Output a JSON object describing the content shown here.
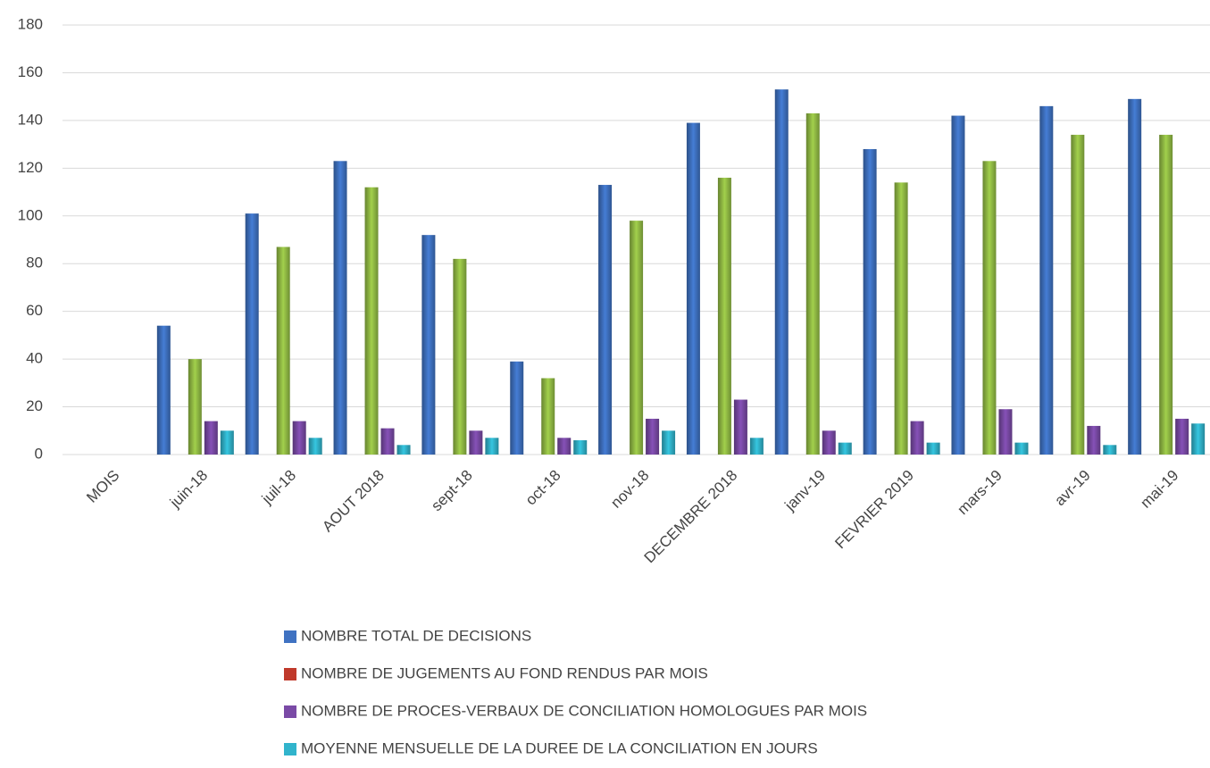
{
  "chart_data": {
    "type": "bar",
    "categories": [
      "MOIS",
      "juin-18",
      "juil-18",
      "AOUT 2018",
      "sept-18",
      "oct-18",
      "nov-18",
      "DECEMBRE 2018",
      "janv-19",
      "FEVRIER 2019",
      "mars-19",
      "avr-19",
      "mai-19"
    ],
    "series": [
      {
        "name": "NOMBRE TOTAL DE DECISIONS",
        "color": "#3f72c2",
        "values": [
          null,
          54,
          101,
          123,
          92,
          39,
          113,
          139,
          153,
          128,
          142,
          146,
          149
        ]
      },
      {
        "name": "NOMBRE DE JUGEMENTS AU FOND RENDUS  PAR MOIS",
        "color": "#93bd45",
        "legend_color": "#c0392b",
        "values": [
          null,
          40,
          87,
          112,
          82,
          32,
          98,
          116,
          143,
          114,
          123,
          134,
          134
        ]
      },
      {
        "name": "NOMBRE DE PROCES-VERBAUX DE CONCILIATION HOMOLOGUES PAR MOIS",
        "color": "#7a4aa6",
        "values": [
          null,
          14,
          14,
          11,
          10,
          7,
          15,
          23,
          10,
          14,
          19,
          12,
          15
        ]
      },
      {
        "name": "MOYENNE MENSUELLE DE LA DUREE DE LA CONCILIATION EN JOURS",
        "color": "#31b4cc",
        "values": [
          null,
          10,
          7,
          4,
          7,
          6,
          10,
          7,
          5,
          5,
          5,
          4,
          13
        ]
      }
    ],
    "ylim": [
      0,
      180
    ],
    "yticks": [
      0,
      20,
      40,
      60,
      80,
      100,
      120,
      140,
      160,
      180
    ],
    "grid": true,
    "legend": "bottom"
  }
}
